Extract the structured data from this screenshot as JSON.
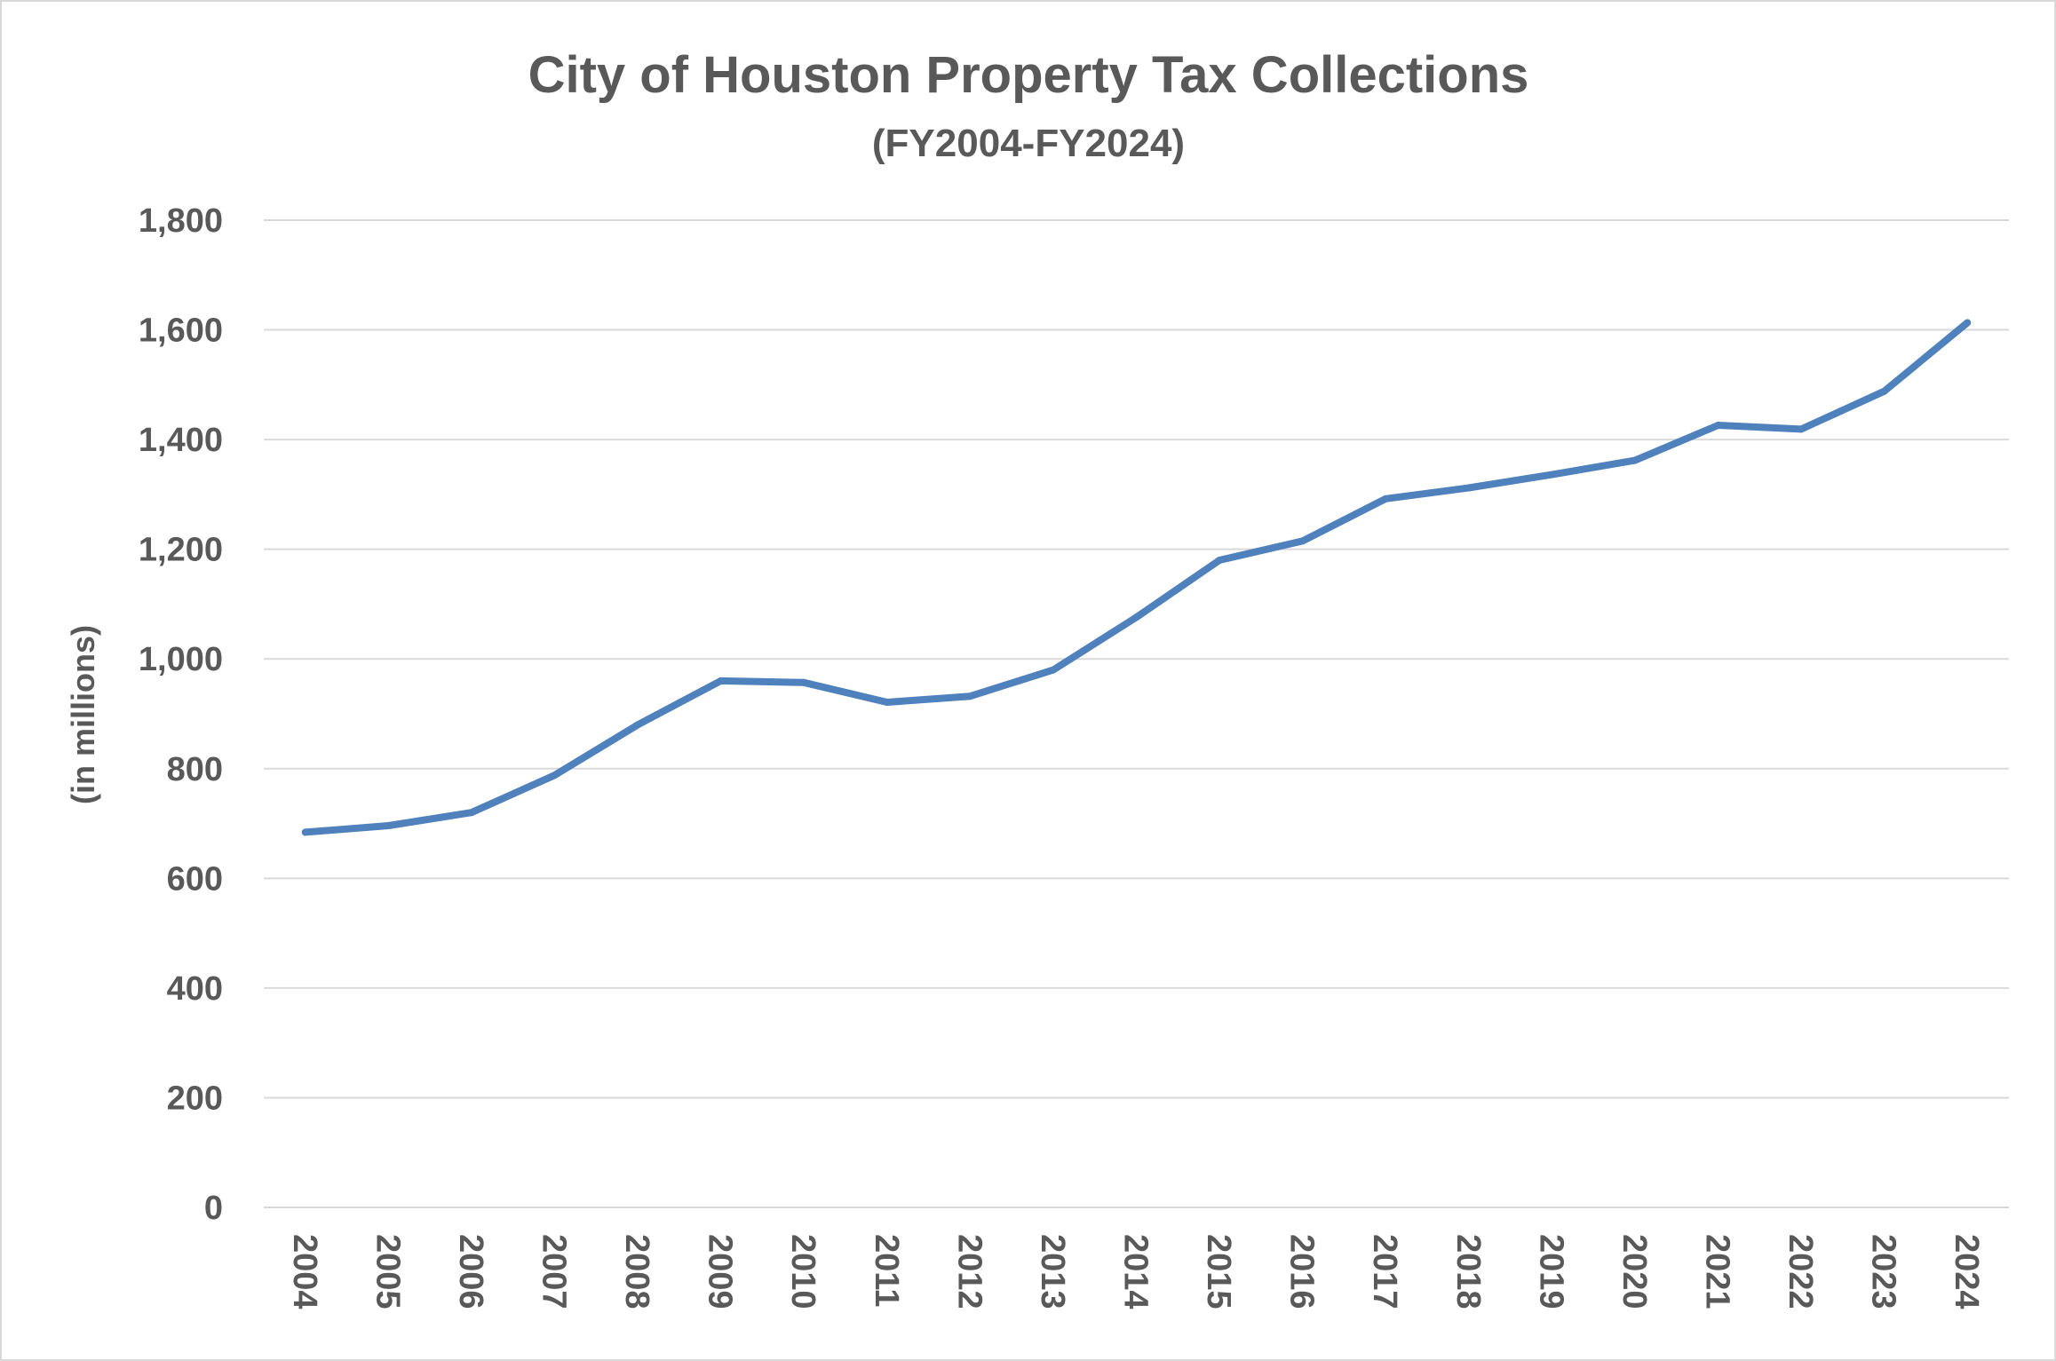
{
  "chart_data": {
    "type": "line",
    "title": "City of Houston Property Tax Collections",
    "subtitle": "(FY2004-FY2024)",
    "xlabel": "",
    "ylabel": "(in millions)",
    "ylim": [
      0,
      1800
    ],
    "yticks": [
      0,
      200,
      400,
      600,
      800,
      1000,
      1200,
      1400,
      1600,
      1800
    ],
    "ytick_labels": [
      "0",
      "200",
      "400",
      "600",
      "800",
      "1,000",
      "1,200",
      "1,400",
      "1,600",
      "1,800"
    ],
    "grid": true,
    "legend": "none",
    "categories": [
      "2004",
      "2005",
      "2006",
      "2007",
      "2008",
      "2009",
      "2010",
      "2011",
      "2012",
      "2013",
      "2014",
      "2015",
      "2016",
      "2017",
      "2018",
      "2019",
      "2020",
      "2021",
      "2022",
      "2023",
      "2024"
    ],
    "series": [
      {
        "name": "Property Tax Collections",
        "color": "#4f81bd",
        "values": [
          684,
          696,
          720,
          788,
          880,
          960,
          957,
          921,
          932,
          980,
          1076,
          1180,
          1215,
          1292,
          1312,
          1336,
          1362,
          1426,
          1419,
          1488,
          1613
        ]
      }
    ]
  }
}
